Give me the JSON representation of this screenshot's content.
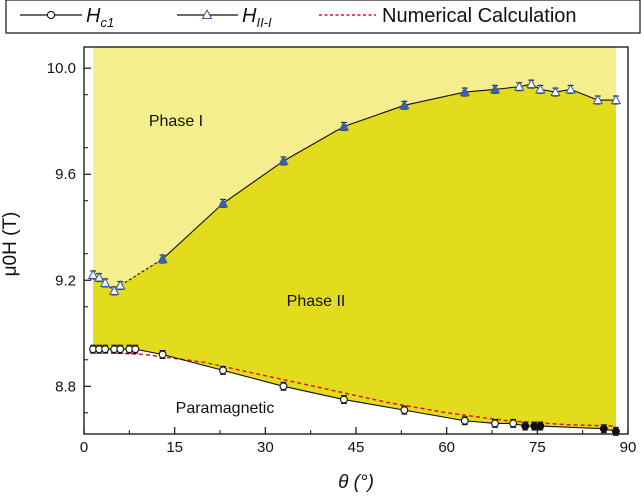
{
  "chart_data": {
    "type": "line",
    "xlabel": "θ (°)",
    "ylabel": "μ0H (T)",
    "xlim": [
      0,
      90
    ],
    "ylim": [
      8.62,
      10.08
    ],
    "x_ticks": [
      0,
      15,
      30,
      45,
      60,
      75,
      90
    ],
    "y_ticks": [
      8.8,
      9.2,
      9.6,
      10.0
    ],
    "x_tick_labels": [
      "0",
      "15",
      "30",
      "45",
      "60",
      "75",
      "90"
    ],
    "y_tick_labels": [
      "8.8",
      "9.2",
      "9.6",
      "10.0"
    ],
    "grid": false,
    "legend_position": "top",
    "region_labels": {
      "phase1": "Phase I",
      "phase2": "Phase II",
      "para": "Paramagnetic"
    },
    "colors": {
      "phase1_fill": "#f4ef8c",
      "phase2_fill": "#e2dc1c",
      "numerical": "#e0141e",
      "hll_marker": "#3c5fa8",
      "line": "#111111"
    },
    "series": [
      {
        "name": "Hc1",
        "legend_main": "H",
        "legend_sub": "c1",
        "marker": "open-circle",
        "filled_from_index": 15,
        "points": [
          [
            1.5,
            8.94
          ],
          [
            2.5,
            8.94
          ],
          [
            3.5,
            8.94
          ],
          [
            5,
            8.94
          ],
          [
            6,
            8.94
          ],
          [
            7.5,
            8.94
          ],
          [
            8.5,
            8.94
          ],
          [
            13,
            8.92
          ],
          [
            23,
            8.86
          ],
          [
            33,
            8.8
          ],
          [
            43,
            8.75
          ],
          [
            53,
            8.71
          ],
          [
            63,
            8.67
          ],
          [
            68,
            8.66
          ],
          [
            71,
            8.66
          ],
          [
            73,
            8.65
          ],
          [
            74.5,
            8.65
          ],
          [
            75.5,
            8.65
          ],
          [
            86,
            8.64
          ],
          [
            88,
            8.63
          ]
        ],
        "error": 0.015
      },
      {
        "name": "HII-I",
        "legend_main": "H",
        "legend_sub": "II-I",
        "marker": "triangle",
        "points": [
          [
            1.5,
            9.22
          ],
          [
            2.5,
            9.21
          ],
          [
            3.5,
            9.19
          ],
          [
            5,
            9.16
          ],
          [
            6,
            9.18
          ],
          [
            13,
            9.28
          ],
          [
            23,
            9.49
          ],
          [
            33,
            9.65
          ],
          [
            43,
            9.78
          ],
          [
            53,
            9.86
          ],
          [
            63,
            9.91
          ],
          [
            68,
            9.92
          ],
          [
            72,
            9.93
          ],
          [
            74,
            9.94
          ],
          [
            75.5,
            9.92
          ],
          [
            78,
            9.91
          ],
          [
            80.5,
            9.92
          ],
          [
            85,
            9.88
          ],
          [
            88,
            9.88
          ]
        ],
        "filled_indices": [
          5,
          6,
          7,
          8,
          9,
          10,
          11
        ],
        "error": 0.015
      },
      {
        "name": "Numerical Calculation",
        "line_style": "dashed",
        "points": [
          [
            1,
            8.93
          ],
          [
            10,
            8.92
          ],
          [
            20,
            8.89
          ],
          [
            30,
            8.84
          ],
          [
            40,
            8.79
          ],
          [
            50,
            8.74
          ],
          [
            60,
            8.7
          ],
          [
            70,
            8.67
          ],
          [
            80,
            8.655
          ],
          [
            88,
            8.65
          ]
        ]
      }
    ]
  }
}
